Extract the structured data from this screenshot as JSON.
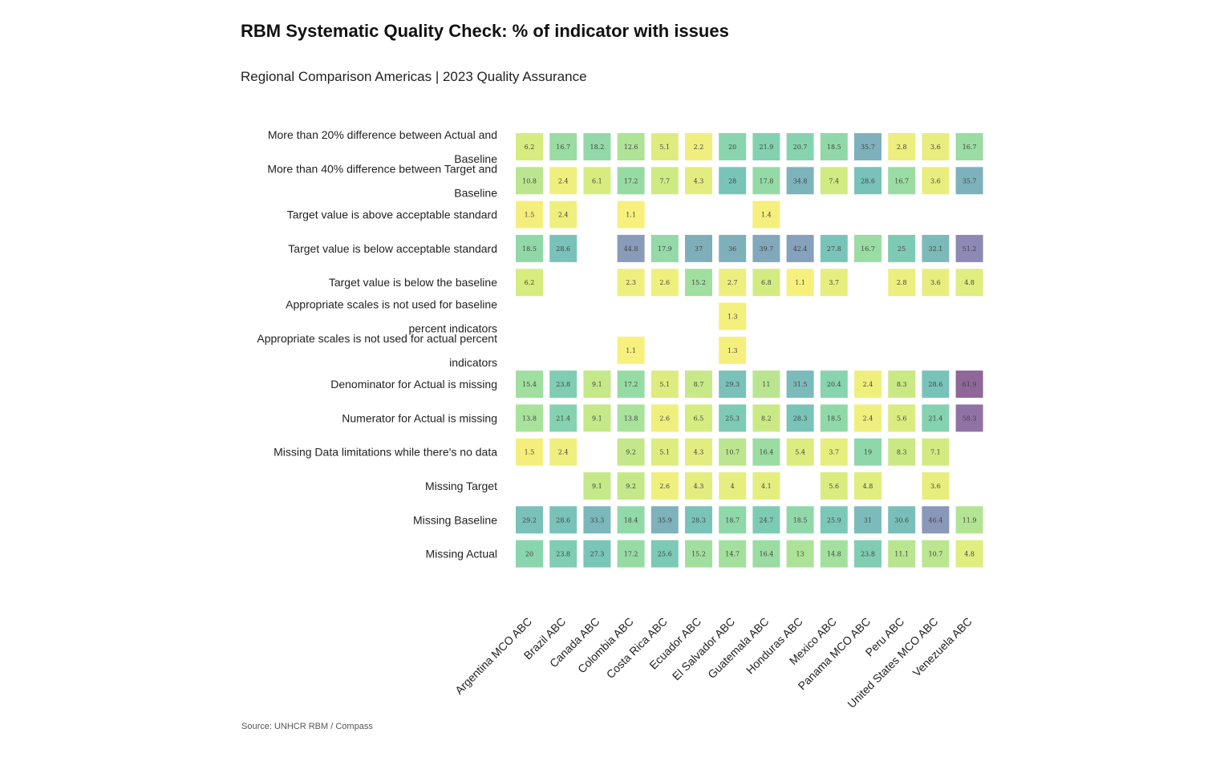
{
  "chart_data": {
    "type": "heatmap",
    "title": "RBM Systematic Quality Check: % of indicator with issues",
    "subtitle": "Regional Comparison Americas | 2023 Quality Assurance",
    "source": "Source: UNHCR RBM / Compass",
    "columns": [
      "Argentina MCO ABC",
      "Brazil ABC",
      "Canada ABC",
      "Colombia ABC",
      "Costa Rica ABC",
      "Ecuador ABC",
      "El Salvador ABC",
      "Guatemala ABC",
      "Honduras ABC",
      "Mexico ABC",
      "Panama MCO ABC",
      "Peru ABC",
      "United States MCO ABC",
      "Venezuela ABC"
    ],
    "rows": [
      {
        "label": [
          "More than 20% difference between Actual and",
          "Baseline"
        ],
        "values": [
          6.2,
          16.7,
          18.2,
          12.6,
          5.1,
          2.2,
          20,
          21.9,
          20.7,
          18.5,
          35.7,
          2.8,
          3.6,
          16.7
        ]
      },
      {
        "label": [
          "More than 40% difference between Target and",
          "Baseline"
        ],
        "values": [
          10.8,
          2.4,
          6.1,
          17.2,
          7.7,
          4.3,
          28,
          17.8,
          34.8,
          7.4,
          28.6,
          16.7,
          3.6,
          35.7
        ]
      },
      {
        "label": [
          "Target value is above acceptable standard"
        ],
        "values": [
          1.5,
          2.4,
          null,
          1.1,
          null,
          null,
          null,
          1.4,
          null,
          null,
          null,
          null,
          null,
          null
        ]
      },
      {
        "label": [
          "Target value is below acceptable standard"
        ],
        "values": [
          18.5,
          28.6,
          null,
          44.8,
          17.9,
          37,
          36,
          39.7,
          42.4,
          27.8,
          16.7,
          25,
          32.1,
          51.2
        ]
      },
      {
        "label": [
          "Target value is below the baseline"
        ],
        "values": [
          6.2,
          null,
          null,
          2.3,
          2.6,
          15.2,
          2.7,
          6.8,
          1.1,
          3.7,
          null,
          2.8,
          3.6,
          4.8
        ]
      },
      {
        "label": [
          "Appropriate scales is not used for baseline",
          "percent indicators"
        ],
        "values": [
          null,
          null,
          null,
          null,
          null,
          null,
          1.3,
          null,
          null,
          null,
          null,
          null,
          null,
          null
        ]
      },
      {
        "label": [
          "Appropriate scales is not used for actual percent",
          "indicators"
        ],
        "values": [
          null,
          null,
          null,
          1.1,
          null,
          null,
          1.3,
          null,
          null,
          null,
          null,
          null,
          null,
          null
        ]
      },
      {
        "label": [
          "Denominator for Actual is missing"
        ],
        "values": [
          15.4,
          23.8,
          9.1,
          17.2,
          5.1,
          8.7,
          29.3,
          11,
          31.5,
          20.4,
          2.4,
          8.3,
          28.6,
          61.9
        ]
      },
      {
        "label": [
          "Numerator for Actual is missing"
        ],
        "values": [
          13.8,
          21.4,
          9.1,
          13.8,
          2.6,
          6.5,
          25.3,
          8.2,
          28.3,
          18.5,
          2.4,
          5.6,
          21.4,
          58.3
        ]
      },
      {
        "label": [
          "Missing Data limitations while there's no data"
        ],
        "values": [
          1.5,
          2.4,
          null,
          9.2,
          5.1,
          4.3,
          10.7,
          16.4,
          5.4,
          3.7,
          19,
          8.3,
          7.1,
          null
        ]
      },
      {
        "label": [
          "Missing Target"
        ],
        "values": [
          null,
          null,
          9.1,
          9.2,
          2.6,
          4.3,
          4,
          4.1,
          null,
          5.6,
          4.8,
          null,
          3.6,
          null
        ]
      },
      {
        "label": [
          "Missing Baseline"
        ],
        "values": [
          29.2,
          28.6,
          33.3,
          18.4,
          35.9,
          28.3,
          18.7,
          24.7,
          18.5,
          25.9,
          31,
          30.6,
          46.4,
          11.9
        ]
      },
      {
        "label": [
          "Missing Actual"
        ],
        "values": [
          20,
          23.8,
          27.3,
          17.2,
          25.6,
          15.2,
          14.7,
          16.4,
          13,
          14.8,
          23.8,
          11.1,
          10.7,
          4.8
        ]
      }
    ],
    "color_scale": {
      "domain": [
        0,
        62
      ],
      "colors": [
        "#fde725",
        "#b5de2b",
        "#6ece58",
        "#35b779",
        "#1f9e89",
        "#26828e",
        "#31688e",
        "#3e4989",
        "#482878",
        "#440154"
      ],
      "opacity": 0.6
    }
  }
}
